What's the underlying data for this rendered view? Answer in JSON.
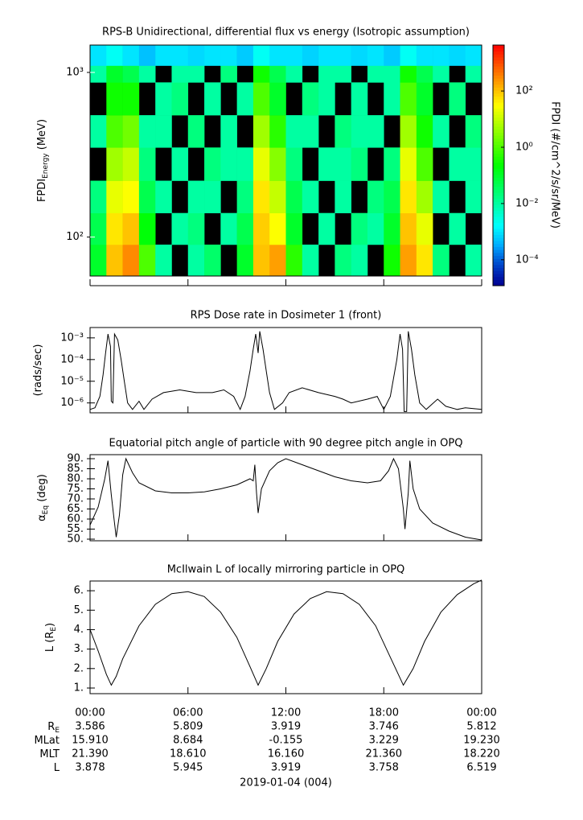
{
  "chart_data": [
    {
      "type": "heatmap",
      "title": "RPS-B  Unidirectional, differential flux vs energy (Isotropic assumption)",
      "ylabel": {
        "main": "FPDI",
        "sub": "Energy",
        "rest": " (MeV)"
      },
      "x_bins": [
        0,
        1,
        2,
        3,
        4,
        5,
        6,
        7,
        8,
        9,
        10,
        11,
        12,
        13,
        14,
        15,
        16,
        17,
        18,
        19,
        20,
        21,
        22,
        23,
        24
      ],
      "y_bins": [
        58,
        90,
        140,
        220,
        350,
        550,
        870,
        1100,
        1466
      ],
      "z": [
        [
          0.1,
          100,
          300,
          1,
          0.01,
          null,
          0.01,
          0.03,
          null,
          0.1,
          100,
          200,
          0.5,
          0.01,
          null,
          0.02,
          0.01,
          null,
          0.3,
          200,
          50,
          0.02,
          null,
          0.01
        ],
        [
          0.05,
          50,
          100,
          0.2,
          null,
          0.01,
          0.02,
          null,
          0.01,
          0.05,
          80,
          30,
          0.1,
          null,
          0.01,
          null,
          0.02,
          0.01,
          0.1,
          100,
          20,
          null,
          0.01,
          null
        ],
        [
          0.02,
          20,
          30,
          0.05,
          0.01,
          null,
          0.01,
          0.01,
          null,
          0.02,
          50,
          10,
          0.05,
          0.01,
          null,
          0.01,
          null,
          0.02,
          0.05,
          50,
          5,
          0.01,
          null,
          0.01
        ],
        [
          null,
          5,
          10,
          0.02,
          null,
          0.01,
          null,
          0.02,
          0.01,
          0.01,
          20,
          3,
          0.02,
          null,
          0.01,
          0.01,
          0.02,
          null,
          0.02,
          20,
          1,
          null,
          0.01,
          0.01
        ],
        [
          0.01,
          1,
          2,
          0.01,
          0.01,
          null,
          0.02,
          null,
          0.01,
          null,
          5,
          0.5,
          0.01,
          0.01,
          null,
          0.02,
          0.01,
          0.01,
          null,
          5,
          0.3,
          0.01,
          null,
          0.02
        ],
        [
          null,
          0.3,
          0.3,
          null,
          0.01,
          0.02,
          null,
          0.01,
          null,
          0.01,
          1,
          0.1,
          null,
          0.02,
          0.01,
          null,
          0.01,
          null,
          0.01,
          1,
          0.1,
          null,
          0.02,
          null
        ],
        [
          0.01,
          0.1,
          0.05,
          0.01,
          null,
          0.01,
          0.01,
          null,
          0.02,
          null,
          0.3,
          0.05,
          0.01,
          null,
          0.01,
          0.01,
          null,
          0.01,
          0.01,
          0.3,
          0.05,
          0.01,
          null,
          0.01
        ],
        [
          0.001,
          0.002,
          0.001,
          0.0005,
          0.001,
          0.001,
          0.0008,
          0.001,
          0.001,
          0.0006,
          0.002,
          0.001,
          0.001,
          0.0007,
          0.001,
          0.001,
          0.0008,
          0.001,
          0.0006,
          0.002,
          0.001,
          0.001,
          0.0008,
          0.001
        ]
      ],
      "xlim": [
        0,
        24
      ],
      "xticks": [
        0,
        6,
        12,
        18,
        24
      ],
      "ylog": true,
      "ylim": [
        58,
        1466
      ],
      "yticks": [
        {
          "value": 100,
          "label": "10²"
        },
        {
          "value": 1000,
          "label": "10³"
        }
      ],
      "colorbar_label": "FPDI (#/cm^2/s/sr/MeV)",
      "zlog": true,
      "zlim": [
        1.2e-05,
        4300
      ],
      "zticks": [
        {
          "value": 0.0001,
          "label": "10⁻⁴"
        },
        {
          "value": 0.01,
          "label": "10⁻²"
        },
        {
          "value": 1,
          "label": "10⁰"
        },
        {
          "value": 100,
          "label": "10²"
        }
      ]
    },
    {
      "type": "line",
      "title": "RPS  Dose rate in Dosimeter 1 (front)",
      "ylabel": {
        "main": "(rads/sec)"
      },
      "x": [
        0,
        0.3,
        0.6,
        0.8,
        0.95,
        1.1,
        1.25,
        1.3,
        1.4,
        1.5,
        1.7,
        1.9,
        2.1,
        2.3,
        2.6,
        3.0,
        3.3,
        3.8,
        4.5,
        5.5,
        6.5,
        7.5,
        8.2,
        8.8,
        9.2,
        9.5,
        9.8,
        10.0,
        10.15,
        10.3,
        10.4,
        10.6,
        10.8,
        11.0,
        11.3,
        11.8,
        12.2,
        13,
        14,
        15,
        15.5,
        16,
        17,
        17.6,
        18,
        18.4,
        18.8,
        19.0,
        19.15,
        19.25,
        19.4,
        19.5,
        19.7,
        19.9,
        20.2,
        20.6,
        21.3,
        21.8,
        22.5,
        23,
        24
      ],
      "series": [
        {
          "color": "#000000",
          "values": [
            5e-07,
            6e-07,
            2e-06,
            2e-05,
            0.0002,
            0.0015,
            0.0004,
            1.2e-06,
            1e-06,
            0.0015,
            0.0008,
            0.0001,
            1e-05,
            1e-06,
            5e-07,
            1.2e-06,
            5e-07,
            1.5e-06,
            3e-06,
            4e-06,
            3e-06,
            3e-06,
            4e-06,
            2e-06,
            5e-07,
            2e-06,
            3e-05,
            0.0003,
            0.0015,
            0.0002,
            0.002,
            0.0003,
            3e-05,
            3e-06,
            5e-07,
            1e-06,
            3e-06,
            5e-06,
            3e-06,
            2e-06,
            1.5e-06,
            1e-06,
            1.5e-06,
            2e-06,
            5e-07,
            2e-06,
            0.0001,
            0.0015,
            0.0003,
            4e-07,
            4e-07,
            0.002,
            0.0003,
            2e-05,
            1e-06,
            5e-07,
            1.5e-06,
            7e-07,
            5e-07,
            6e-07,
            5e-07
          ]
        }
      ],
      "xlim": [
        0,
        24
      ],
      "xticks": [
        0,
        6,
        12,
        18,
        24
      ],
      "ylog": true,
      "ylim": [
        3.5e-07,
        0.003
      ],
      "yticks": [
        {
          "value": 1e-06,
          "label": "10⁻⁶"
        },
        {
          "value": 1e-05,
          "label": "10⁻⁵"
        },
        {
          "value": 0.0001,
          "label": "10⁻⁴"
        },
        {
          "value": 0.001,
          "label": "10⁻³"
        }
      ]
    },
    {
      "type": "line",
      "title": "Equatorial pitch angle of particle with 90 degree pitch angle in OPQ",
      "ylabel": {
        "main": "α",
        "sub": "Eq",
        "rest": " (deg)"
      },
      "x": [
        0,
        0.5,
        0.9,
        1.1,
        1.3,
        1.5,
        1.6,
        1.8,
        2.0,
        2.2,
        2.6,
        3,
        4,
        5,
        6,
        7,
        8,
        9,
        9.8,
        10.0,
        10.1,
        10.2,
        10.3,
        10.5,
        11,
        11.5,
        12,
        13,
        14,
        15,
        16,
        17,
        17.8,
        18.3,
        18.6,
        18.9,
        19.2,
        19.3,
        19.5,
        19.6,
        19.8,
        20.2,
        21,
        22,
        23,
        24
      ],
      "series": [
        {
          "color": "#000000",
          "values": [
            57,
            66,
            80,
            89,
            72,
            58,
            51,
            62,
            82,
            90,
            83,
            78,
            74,
            73,
            73,
            73.5,
            75,
            77,
            80,
            79,
            87,
            73,
            63,
            75,
            84,
            88,
            90,
            87,
            84,
            81,
            79,
            78,
            79,
            84,
            90,
            85,
            65,
            55,
            73,
            89,
            75,
            65,
            58,
            54,
            51,
            49.6
          ]
        }
      ],
      "xlim": [
        0,
        24
      ],
      "xticks": [
        0,
        6,
        12,
        18,
        24
      ],
      "ylim": [
        49.2,
        92
      ],
      "yticks": [
        {
          "value": 50,
          "label": "50."
        },
        {
          "value": 55,
          "label": "55."
        },
        {
          "value": 60,
          "label": "60."
        },
        {
          "value": 65,
          "label": "65."
        },
        {
          "value": 70,
          "label": "70."
        },
        {
          "value": 75,
          "label": "75."
        },
        {
          "value": 80,
          "label": "80."
        },
        {
          "value": 85,
          "label": "85."
        },
        {
          "value": 90,
          "label": "90."
        }
      ]
    },
    {
      "type": "line",
      "title": "McIlwain L of locally mirroring particle in OPQ",
      "ylabel": {
        "main": "L (R",
        "sub": "E",
        "rest": ")"
      },
      "x": [
        0,
        0.5,
        1.0,
        1.3,
        1.6,
        2,
        3,
        4,
        5,
        6,
        7,
        8,
        9,
        9.8,
        10.3,
        10.8,
        11.5,
        12.5,
        13.5,
        14.5,
        15.5,
        16.5,
        17.5,
        18.5,
        19.2,
        19.8,
        20.5,
        21.5,
        22.5,
        23.5,
        24
      ],
      "series": [
        {
          "color": "#000000",
          "values": [
            4.0,
            2.9,
            1.7,
            1.15,
            1.6,
            2.5,
            4.2,
            5.3,
            5.85,
            5.95,
            5.7,
            4.9,
            3.6,
            2.1,
            1.15,
            2.0,
            3.4,
            4.8,
            5.6,
            5.95,
            5.85,
            5.3,
            4.2,
            2.4,
            1.15,
            2.0,
            3.4,
            4.9,
            5.8,
            6.35,
            6.55
          ]
        }
      ],
      "xlim": [
        0,
        24
      ],
      "xticks": [
        {
          "value": 0,
          "label": "00:00"
        },
        {
          "value": 6,
          "label": "06:00"
        },
        {
          "value": 12,
          "label": "12:00"
        },
        {
          "value": 18,
          "label": "18:00"
        },
        {
          "value": 24,
          "label": "00:00"
        }
      ],
      "ylim": [
        0.71,
        6.5
      ],
      "yticks": [
        {
          "value": 1,
          "label": "1."
        },
        {
          "value": 2,
          "label": "2."
        },
        {
          "value": 3,
          "label": "3."
        },
        {
          "value": 4,
          "label": "4."
        },
        {
          "value": 5,
          "label": "5."
        },
        {
          "value": 6,
          "label": "6."
        }
      ],
      "ephemeris": {
        "rows": [
          {
            "label": "R",
            "label_sub": "E",
            "values": [
              "3.586",
              "5.809",
              "3.919",
              "3.746",
              "5.812"
            ]
          },
          {
            "label": "MLat",
            "values": [
              "15.910",
              "8.684",
              "-0.155",
              "3.229",
              "19.230"
            ]
          },
          {
            "label": "MLT",
            "values": [
              "21.390",
              "18.610",
              "16.160",
              "21.360",
              "18.220"
            ]
          },
          {
            "label": "L",
            "values": [
              "3.878",
              "5.945",
              "3.919",
              "3.758",
              "6.519"
            ]
          }
        ],
        "date": "2019-01-04 (004)"
      }
    }
  ]
}
